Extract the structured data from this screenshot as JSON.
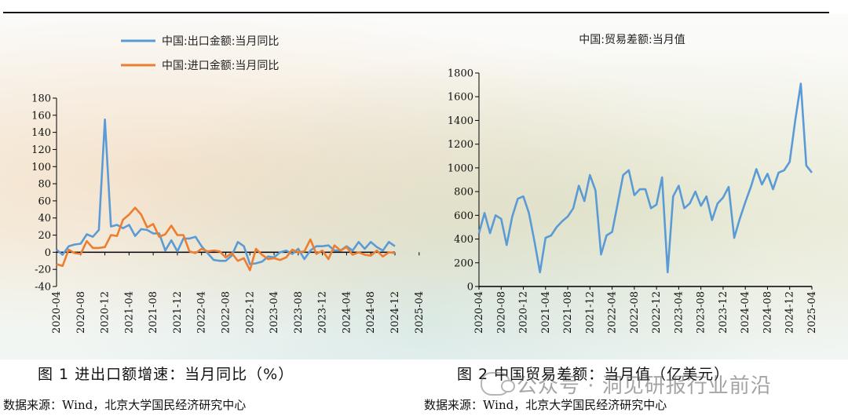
{
  "chart_data": [
    {
      "type": "line",
      "title": "",
      "xlabel": "",
      "ylabel": "",
      "ylim": [
        -40,
        180
      ],
      "yticks": [
        -40,
        -20,
        0,
        20,
        40,
        60,
        80,
        100,
        120,
        140,
        160,
        180
      ],
      "xtick_labels": [
        "2020-04",
        "2020-08",
        "2020-12",
        "2021-04",
        "2021-08",
        "2021-12",
        "2022-04",
        "2022-08",
        "2022-12",
        "2023-04",
        "2023-08",
        "2023-12",
        "2024-04",
        "2024-08",
        "2024-12",
        "2025-04"
      ],
      "legend_position": "top-left",
      "series": [
        {
          "name": "中国:出口金额:当月同比",
          "color": "#5b9bd5",
          "values": [
            3,
            -3,
            7,
            9,
            10,
            21,
            18,
            26,
            155,
            30,
            32,
            28,
            32,
            19,
            27,
            26,
            22,
            22,
            2,
            14,
            1,
            16,
            16,
            18,
            7,
            -1,
            -9,
            -10,
            -10,
            -4,
            12,
            7,
            -14,
            -13,
            -11,
            -5,
            -6,
            0,
            2,
            -2,
            4,
            -8,
            2,
            7,
            7,
            8,
            2,
            2,
            7,
            2,
            12,
            4,
            12,
            6,
            2,
            12,
            7
          ]
        },
        {
          "name": "中国:进口金额:当月同比",
          "color": "#ed7d31",
          "values": [
            -14,
            -16,
            3,
            -1,
            -2,
            13,
            5,
            5,
            6,
            20,
            19,
            38,
            44,
            52,
            44,
            29,
            33,
            18,
            21,
            31,
            20,
            20,
            1,
            -1,
            4,
            1,
            2,
            1,
            -6,
            -1,
            -10,
            -7,
            -21,
            4,
            -3,
            -8,
            -7,
            -9,
            -6,
            3,
            0,
            1,
            15,
            -2,
            2,
            -8,
            8,
            2,
            6,
            -3,
            0,
            -3,
            -4,
            2,
            -5,
            0,
            -1
          ]
        }
      ]
    },
    {
      "type": "line",
      "title": "中国:贸易差额:当月值",
      "xlabel": "",
      "ylabel": "",
      "ylim": [
        0,
        1800
      ],
      "yticks": [
        0,
        200,
        400,
        600,
        800,
        1000,
        1200,
        1400,
        1600,
        1800
      ],
      "xtick_labels": [
        "2020-04",
        "2020-08",
        "2020-12",
        "2021-04",
        "2021-08",
        "2021-12",
        "2022-04",
        "2022-08",
        "2022-12",
        "2023-04",
        "2023-08",
        "2023-12",
        "2024-04",
        "2024-08",
        "2024-12",
        "2025-04"
      ],
      "series": [
        {
          "name": "中国:贸易差额:当月值",
          "color": "#5b9bd5",
          "values": [
            450,
            620,
            450,
            600,
            570,
            350,
            590,
            740,
            760,
            620,
            380,
            120,
            410,
            430,
            500,
            550,
            590,
            660,
            850,
            720,
            940,
            810,
            270,
            430,
            460,
            700,
            940,
            980,
            770,
            820,
            820,
            660,
            690,
            920,
            120,
            760,
            850,
            660,
            700,
            800,
            680,
            760,
            560,
            700,
            750,
            840,
            410,
            570,
            710,
            840,
            990,
            860,
            950,
            820,
            960,
            980,
            1050,
            1400,
            1710,
            1020,
            960
          ]
        }
      ]
    }
  ],
  "captions": {
    "fig1": "图 1  进出口额增速：当月同比（%）",
    "fig2": "图 2  中国贸易差额：当月值（亿美元）"
  },
  "sources": {
    "left": "数据来源：Wind，北京大学国民经济研究中心",
    "right": "数据来源：Wind，北京大学国民经济研究中心"
  },
  "watermark": "公众号 · 洞见研报行业前沿"
}
